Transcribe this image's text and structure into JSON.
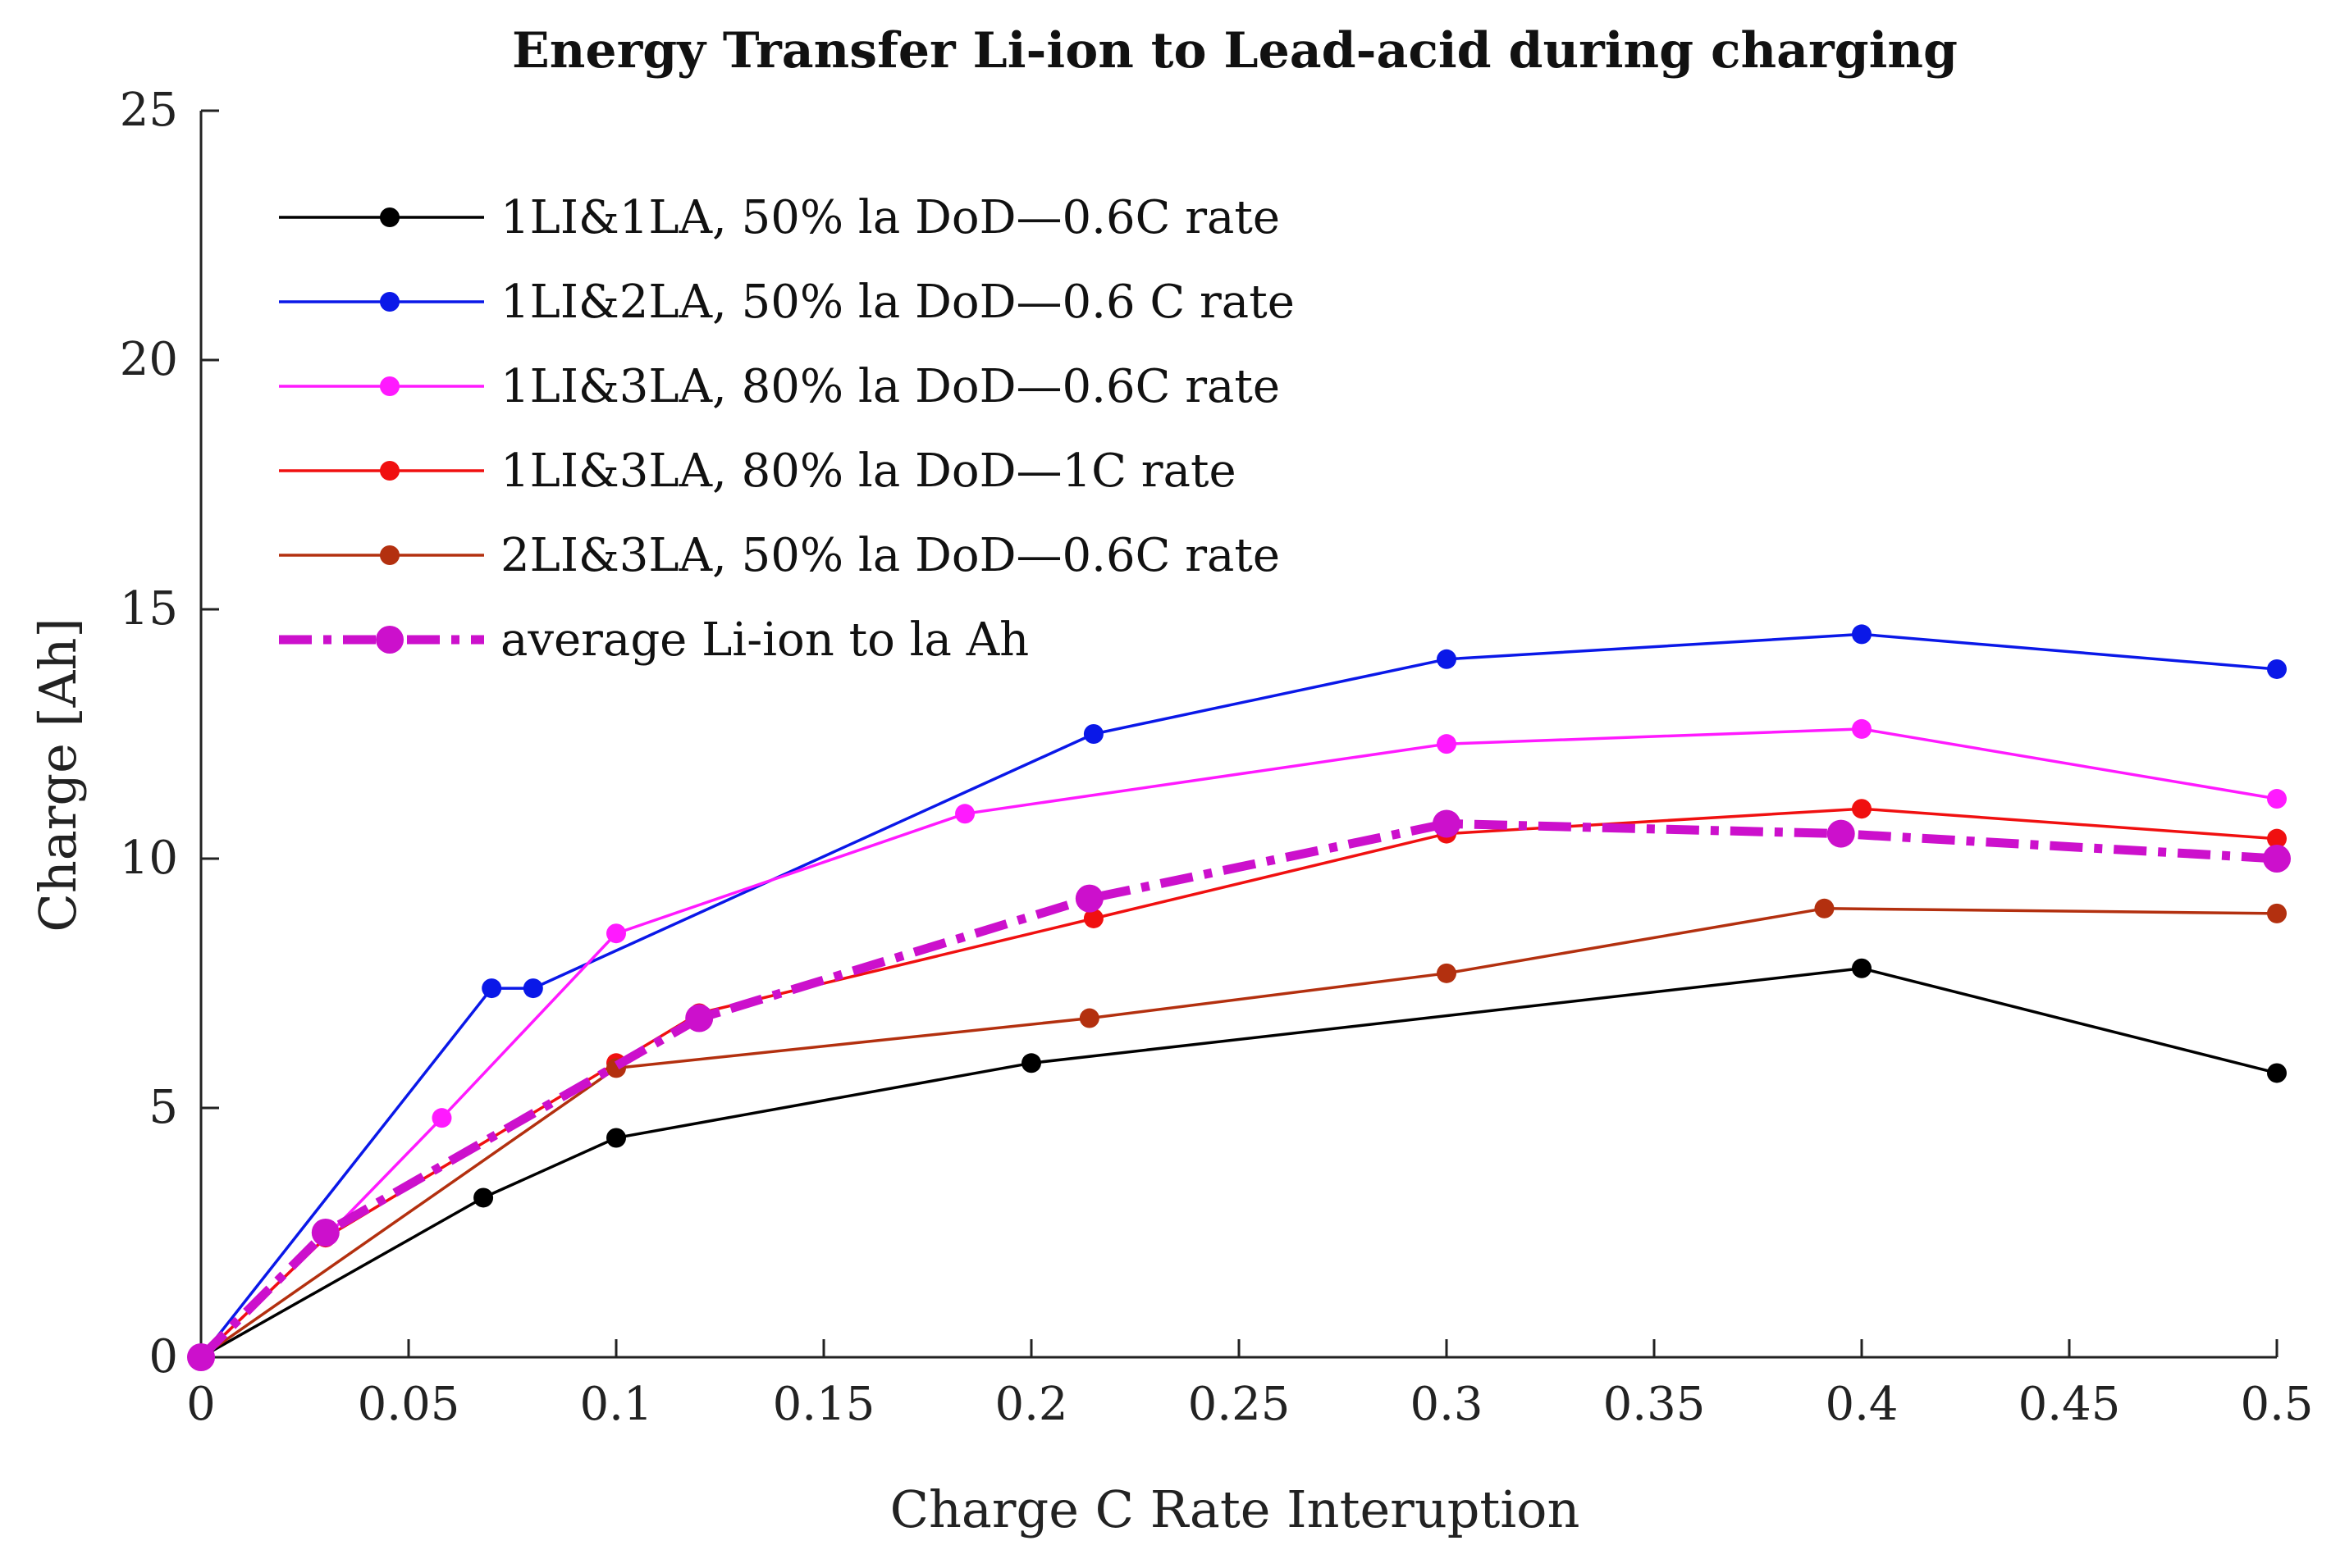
{
  "chart_data": {
    "type": "line",
    "title": "Energy Transfer Li-ion to Lead-acid during charging",
    "xlabel": "Charge C Rate Interuption",
    "ylabel": "Charge [Ah]",
    "xlim": [
      0,
      0.5
    ],
    "ylim": [
      0,
      25
    ],
    "xticks": [
      "0",
      "0.05",
      "0.1",
      "0.15",
      "0.2",
      "0.25",
      "0.3",
      "0.35",
      "0.4",
      "0.45",
      "0.5"
    ],
    "yticks": [
      "0",
      "5",
      "10",
      "15",
      "20",
      "25"
    ],
    "legend_position": "top-left",
    "grid": false,
    "series": [
      {
        "name": "1LI&1LA, 50% la DoD—0.6C rate",
        "color": "#000000",
        "style": "solid",
        "x": [
          0,
          0.068,
          0.1,
          0.2,
          0.4,
          0.5
        ],
        "y": [
          0,
          3.2,
          4.4,
          5.9,
          7.8,
          5.7
        ]
      },
      {
        "name": "1LI&2LA, 50% la DoD—0.6 C rate",
        "color": "#0a18e8",
        "style": "solid",
        "x": [
          0,
          0.07,
          0.08,
          0.215,
          0.3,
          0.4,
          0.5
        ],
        "y": [
          0,
          7.4,
          7.4,
          12.5,
          14.0,
          14.5,
          13.8
        ]
      },
      {
        "name": "1LI&3LA, 80% la DoD—0.6C rate",
        "color": "#ff1aff",
        "style": "solid",
        "x": [
          0,
          0.03,
          0.058,
          0.1,
          0.184,
          0.3,
          0.4,
          0.5
        ],
        "y": [
          0,
          2.4,
          4.8,
          8.5,
          10.9,
          12.3,
          12.6,
          11.2
        ]
      },
      {
        "name": "1LI&3LA, 80% la DoD—1C rate",
        "color": "#f01010",
        "style": "solid",
        "x": [
          0,
          0.03,
          0.1,
          0.12,
          0.215,
          0.3,
          0.4,
          0.5
        ],
        "y": [
          0,
          2.4,
          5.9,
          6.9,
          8.8,
          10.5,
          11.0,
          10.4
        ]
      },
      {
        "name": "2LI&3LA, 50% la DoD—0.6C rate",
        "color": "#b3300f",
        "style": "solid",
        "x": [
          0,
          0.1,
          0.214,
          0.3,
          0.391,
          0.5
        ],
        "y": [
          0,
          5.8,
          6.8,
          7.7,
          9.0,
          8.9
        ]
      },
      {
        "name": "average Li-ion to la Ah",
        "color": "#cc10cc",
        "style": "dashdot",
        "x": [
          0,
          0.03,
          0.12,
          0.214,
          0.3,
          0.395,
          0.5
        ],
        "y": [
          0,
          2.5,
          6.8,
          9.2,
          10.7,
          10.5,
          10.0
        ]
      }
    ]
  }
}
